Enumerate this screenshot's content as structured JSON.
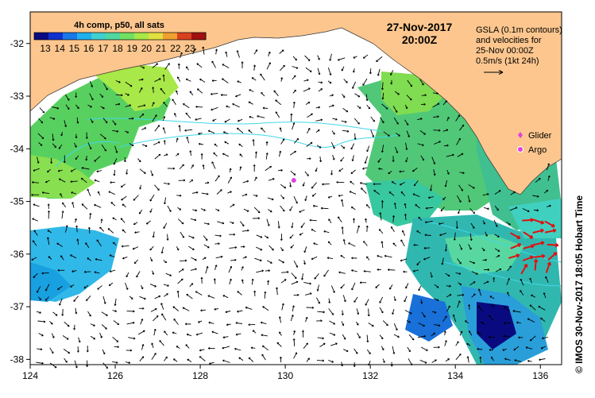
{
  "map": {
    "colorbar": {
      "title": "4h comp, p50, all sats",
      "ticks": [
        "13",
        "14",
        "15",
        "16",
        "17",
        "18",
        "19",
        "20",
        "21",
        "22",
        "23"
      ],
      "colors": [
        "#0a0a80",
        "#1030d0",
        "#1878e8",
        "#20b0f0",
        "#40d0d0",
        "#50d8a0",
        "#70e060",
        "#a8e848",
        "#e0e040",
        "#f0a030",
        "#d84020",
        "#a01010"
      ]
    },
    "datetime_line1": "27-Nov-2017",
    "datetime_line2": "20:00Z",
    "legend_note": [
      "GSLA (0.1m contours)",
      "and velocities for",
      "25-Nov 00:00Z",
      "0.5m/s (1kt 24h)"
    ],
    "markers": [
      {
        "label": "Glider",
        "color": "#e040e0",
        "symbol": "diamond"
      },
      {
        "label": "Argo",
        "color": "#e040e0",
        "symbol": "circle"
      }
    ],
    "credit": "©  IMOS 30-Nov-2017 18:05 Hobart Time",
    "axes": {
      "x_ticks": [
        "124",
        "126",
        "128",
        "130",
        "132",
        "134",
        "136"
      ],
      "y_ticks": [
        "-32",
        "-33",
        "-34",
        "-35",
        "-36",
        "-37",
        "-38"
      ],
      "lon_range": [
        124,
        136.5
      ],
      "lat_range": [
        -38.1,
        -31.4
      ]
    },
    "colors": {
      "land": "#fcc68e",
      "sea_no_data": "#ffffff",
      "contour": "#40d8e8",
      "vector": "#000000",
      "fast_vector": "#e01010"
    },
    "argo_float": {
      "lon": 130.2,
      "lat": -34.6
    }
  }
}
